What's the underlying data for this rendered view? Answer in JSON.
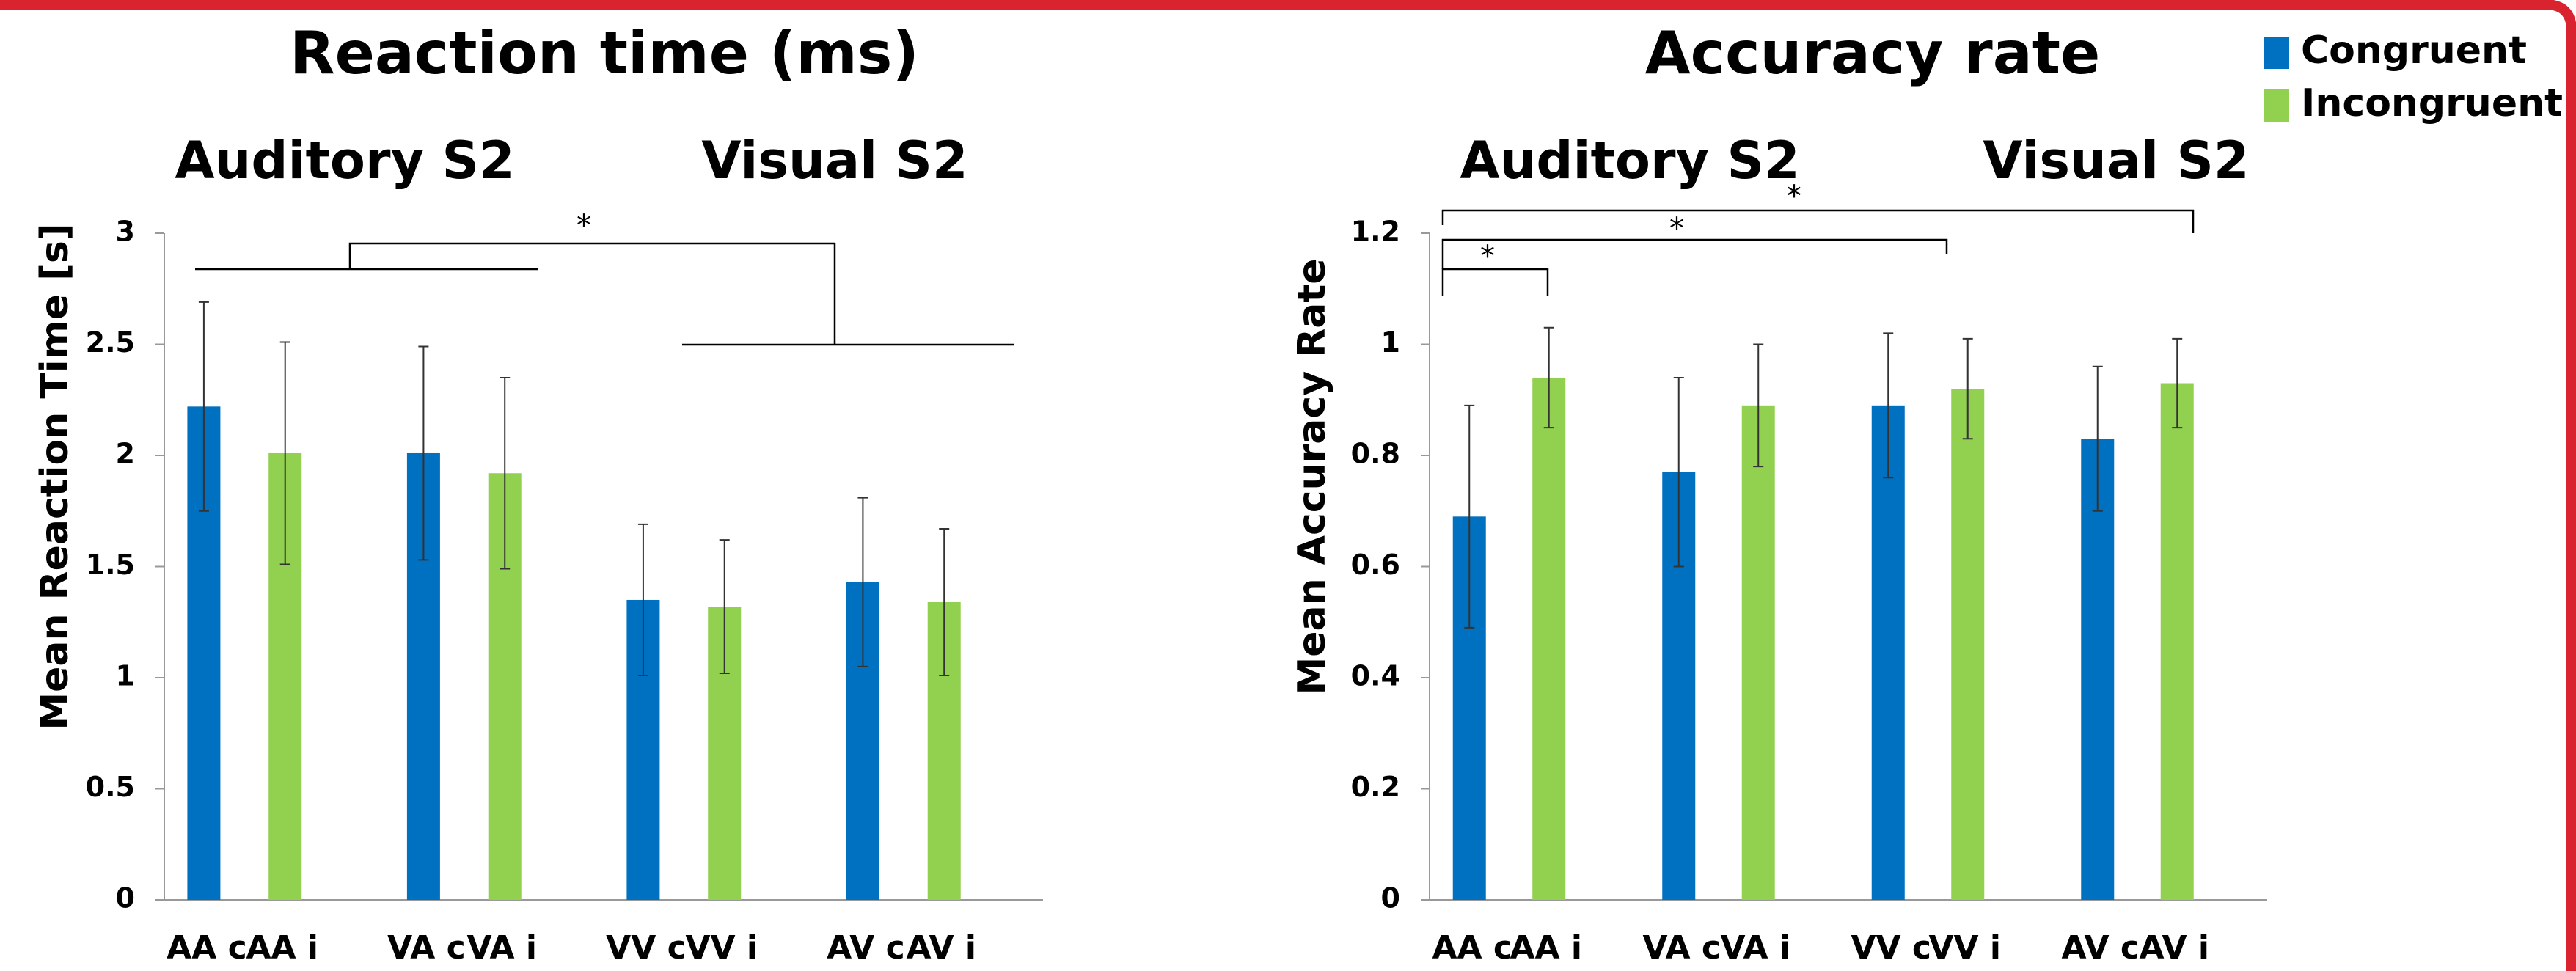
{
  "chart_data": [
    {
      "type": "bar",
      "title": "Reaction time (ms)",
      "y_label": "Mean Reaction Time [s]",
      "groups": [
        "Auditory S2",
        "Visual S2"
      ],
      "ylim": [
        0,
        3
      ],
      "yticks": [
        0,
        0.5,
        1,
        1.5,
        2,
        2.5,
        3
      ],
      "annotations": [
        "*"
      ],
      "series": [
        {
          "color": "#0070c0",
          "labels": [
            "AA c",
            "VA c",
            "VV c",
            "AV c"
          ],
          "values": [
            2.22,
            2.01,
            1.35,
            1.43
          ],
          "errors": [
            0.47,
            0.48,
            0.34,
            0.38
          ]
        },
        {
          "color": "#92d050",
          "labels": [
            "AA i",
            "VA i",
            "VV i",
            "AV i"
          ],
          "values": [
            2.01,
            1.92,
            1.32,
            1.34
          ],
          "errors": [
            0.5,
            0.43,
            0.3,
            0.33
          ]
        }
      ]
    },
    {
      "type": "bar",
      "title": "Accuracy rate",
      "y_label": "Mean Accuracy Rate",
      "groups": [
        "Auditory S2",
        "Visual S2"
      ],
      "ylim": [
        0,
        1.2
      ],
      "yticks": [
        0,
        0.2,
        0.4,
        0.6,
        0.8,
        1,
        1.2
      ],
      "annotations": [
        "*",
        "*",
        "*"
      ],
      "legend": "top-right",
      "series": [
        {
          "name": "Congruent",
          "color": "#0070c0",
          "labels": [
            "AA c",
            "VA c",
            "VV c",
            "AV c"
          ],
          "values": [
            0.69,
            0.77,
            0.89,
            0.83
          ],
          "errors": [
            0.2,
            0.17,
            0.13,
            0.13
          ]
        },
        {
          "name": "Incongruent",
          "color": "#92d050",
          "labels": [
            "AA i",
            "VA i",
            "VV i",
            "AV i"
          ],
          "values": [
            0.94,
            0.89,
            0.92,
            0.93
          ],
          "errors": [
            0.09,
            0.11,
            0.09,
            0.08
          ]
        }
      ]
    }
  ]
}
